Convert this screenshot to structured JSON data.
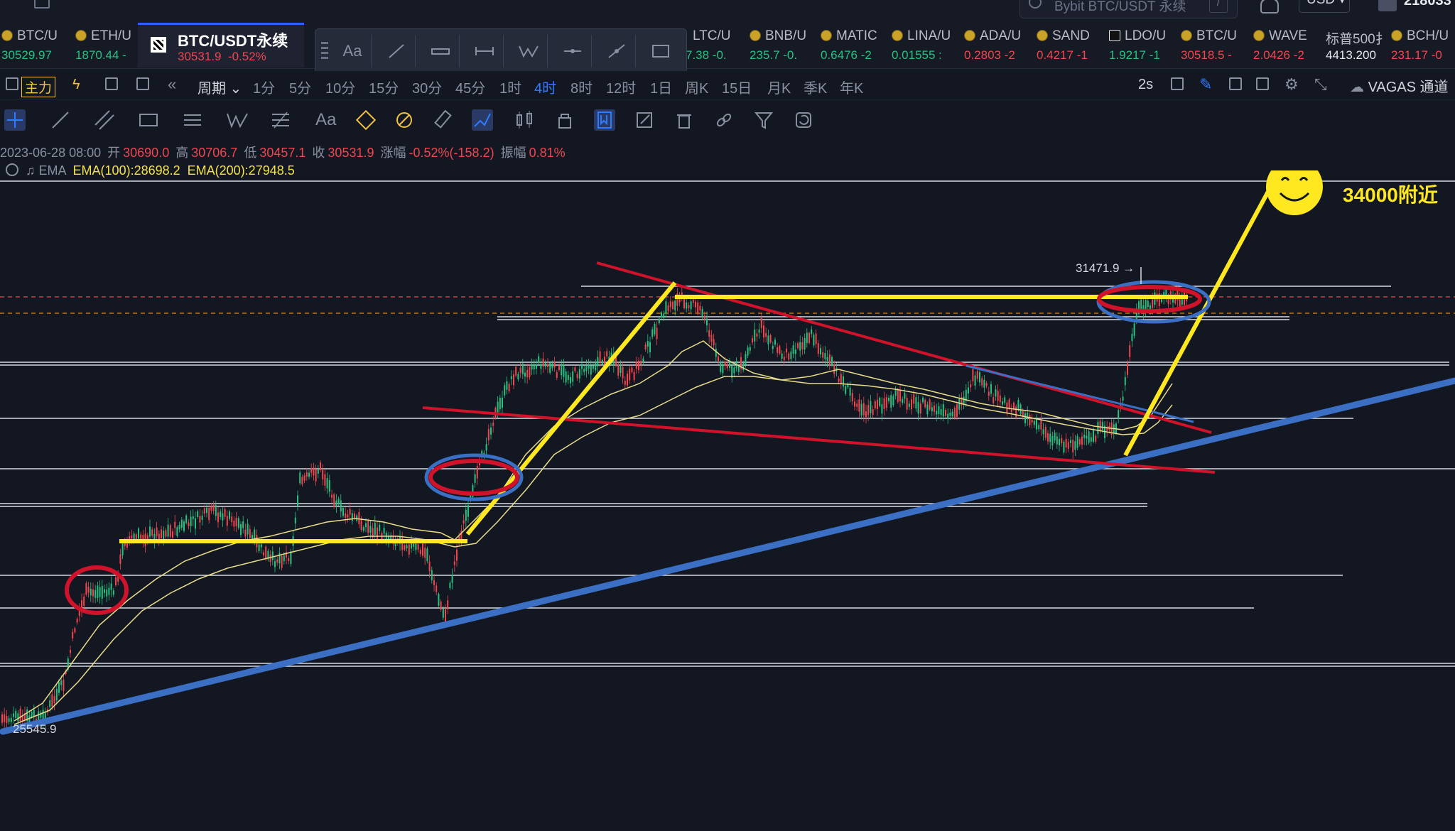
{
  "topbar": {
    "search_placeholder": "Bybit BTC/USDT 永续",
    "search_shortcut": "/",
    "currency": "USD ▾",
    "user_id": "218033"
  },
  "tickers": [
    {
      "name": "BTC/U",
      "price": "30529.97",
      "trend": "up"
    },
    {
      "name": "ETH/U",
      "price": "1870.44 -",
      "trend": "up"
    },
    {
      "name": "LTC/U",
      "price": "7.38 -0.",
      "trend": "up"
    },
    {
      "name": "BNB/U",
      "price": "235.7 -0.",
      "trend": "up"
    },
    {
      "name": "MATIC",
      "price": "0.6476 -2",
      "trend": "up"
    },
    {
      "name": "LINA/U",
      "price": "0.01555 :",
      "trend": "up"
    },
    {
      "name": "ADA/U",
      "price": "0.2803 -2",
      "trend": "down"
    },
    {
      "name": "SAND",
      "price": "0.4217 -1",
      "trend": "down"
    },
    {
      "name": "LDO/U",
      "price": "1.9217 -1",
      "trend": "up"
    },
    {
      "name": "BTC/U",
      "price": "30518.5 -",
      "trend": "down"
    },
    {
      "name": "WAVE",
      "price": "2.0426 -2",
      "trend": "down"
    },
    {
      "name": "标普500扌",
      "price": "4413.200",
      "trend": "flat"
    },
    {
      "name": "BCH/U",
      "price": "231.17 -0",
      "trend": "down"
    }
  ],
  "active_ticker": {
    "name": "BTC/USDT永续",
    "price": "30531.9",
    "change": "-0.52%"
  },
  "draw_toolbar": {
    "text_tool": "Aa"
  },
  "period_bar": {
    "main_label": "主力",
    "period_label": "周期",
    "intervals": [
      "1分",
      "5分",
      "10分",
      "15分",
      "30分",
      "45分",
      "1时",
      "4时",
      "8时",
      "12时",
      "1日",
      "周K",
      "15日",
      "月K",
      "季K",
      "年K"
    ],
    "active_interval": "4时",
    "refresh": "2s",
    "channel": "VAGAS 通道"
  },
  "tools_row": {
    "text_tool": "Aa"
  },
  "ohlc": {
    "date": "2023-06-28 08:00",
    "open_label": "开",
    "open": "30690.0",
    "high_label": "高",
    "high": "30706.7",
    "low_label": "低",
    "low": "30457.1",
    "close_label": "收",
    "close": "30531.9",
    "change_label": "涨幅",
    "change": "-0.52%(-158.2)",
    "amp_label": "振幅",
    "amp": "0.81%"
  },
  "indicators": {
    "name": "EMA",
    "ema100": "EMA(100):28698.2",
    "ema200": "EMA(200):27948.5"
  },
  "chart": {
    "high_label": "31471.9 →",
    "low_label": "25545.9",
    "target_annotation": "34000附近",
    "colors": {
      "up": "#26c281",
      "down": "#f0464e",
      "bg": "#131722",
      "yellow": "#ffe81f",
      "red": "#d0122a",
      "blue": "#3b6fc4"
    }
  }
}
